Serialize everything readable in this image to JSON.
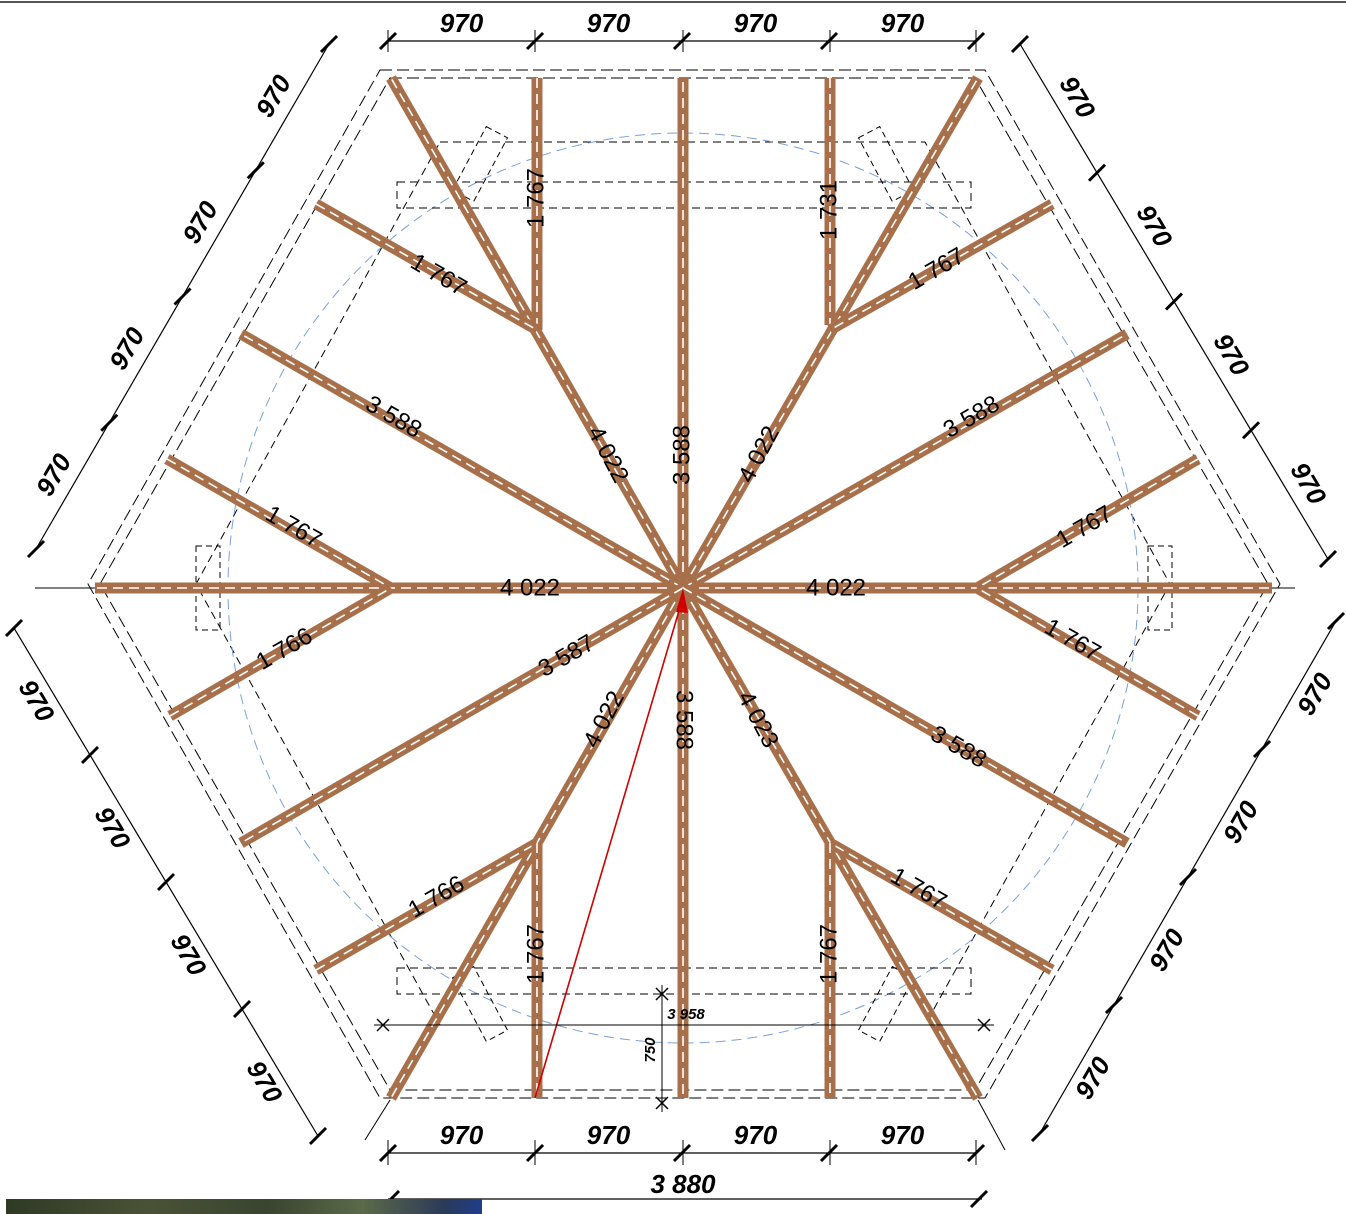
{
  "segment_dims": {
    "top": [
      "970",
      "970",
      "970",
      "970"
    ],
    "bottom": [
      "970",
      "970",
      "970",
      "970"
    ],
    "upper_left": [
      "970",
      "970",
      "970",
      "970"
    ],
    "upper_right": [
      "970",
      "970",
      "970",
      "970"
    ],
    "lower_left": [
      "970",
      "970",
      "970",
      "970"
    ],
    "lower_right": [
      "970",
      "970",
      "970",
      "970"
    ]
  },
  "overall": {
    "width": "3 880",
    "inner_width": "3 958",
    "offset": "750"
  },
  "rafter_labels": {
    "upper_center": "3 588",
    "upper_left_diag": "4 022",
    "upper_right_diag": "4 022",
    "left_upper_long": "3 588",
    "right_upper_long": "3 588",
    "left_horizontal": "4 022",
    "right_horizontal": "4 022",
    "left_lower_long": "3 587",
    "right_lower_long": "3 588",
    "lower_center": "3 588",
    "lower_left_diag": "4 022",
    "lower_right_diag": "4 023",
    "jack_top_left_vertical": "1 767",
    "jack_top_right_vertical": "1 731",
    "jack_top_left_slanted": "1 767",
    "jack_top_right_slanted": "1 767",
    "jack_left_upper": "1 767",
    "jack_right_upper": "1 767",
    "jack_left_lower": "1 766",
    "jack_right_lower": "1 767",
    "jack_bottom_left_slanted": "1 766",
    "jack_bottom_right_slanted": "1 767",
    "jack_bottom_left_vertical": "1 767",
    "jack_bottom_right_vertical": "1 767"
  },
  "colors": {
    "rafter": "#a8704a",
    "centerline": "#ffffff",
    "circle": "#6f9ad6",
    "arrow": "#d00000",
    "line": "#000000"
  }
}
